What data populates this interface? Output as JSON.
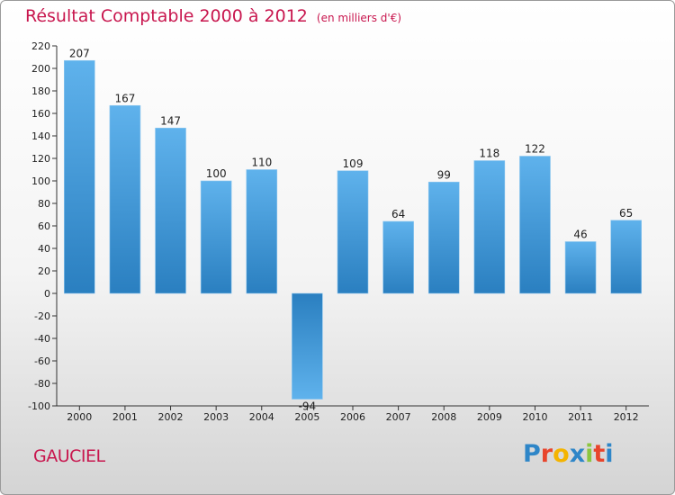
{
  "header": {
    "title": "Résultat Comptable 2000 à 2012",
    "unit": "(en milliers d'€)"
  },
  "footer": {
    "town": "GAUCIEL",
    "logo_letters": [
      "P",
      "r",
      "o",
      "x",
      "i",
      "t",
      "i"
    ],
    "logo_colors": [
      "#2e86c8",
      "#e8452c",
      "#f4b400",
      "#2e86c8",
      "#8cc63f",
      "#e8452c",
      "#2e86c8"
    ]
  },
  "colors": {
    "title": "#c8164e",
    "bar_light": "#5fb2ec",
    "bar_dark": "#2a7fc0",
    "axis": "#333333",
    "grid": "#c8c8c8"
  },
  "chart_data": {
    "type": "bar",
    "title": "Résultat Comptable 2000 à 2012",
    "xlabel": "",
    "ylabel": "",
    "categories": [
      "2000",
      "2001",
      "2002",
      "2003",
      "2004",
      "2005",
      "2006",
      "2007",
      "2008",
      "2009",
      "2010",
      "2011",
      "2012"
    ],
    "values": [
      207,
      167,
      147,
      100,
      110,
      -94,
      109,
      64,
      99,
      118,
      122,
      46,
      65
    ],
    "value_labels": [
      "207",
      "167",
      "147",
      "100",
      "110",
      "-94",
      "109",
      "64",
      "99",
      "118",
      "122",
      "46",
      "65"
    ],
    "ylim": [
      -100,
      220
    ],
    "yticks": [
      220,
      200,
      180,
      160,
      140,
      120,
      100,
      80,
      60,
      40,
      20,
      0,
      -20,
      -40,
      -60,
      -80,
      -100
    ],
    "ytick_labels": [
      "220",
      "200",
      "180",
      "160",
      "140",
      "120",
      "100",
      "80",
      "60",
      "40",
      "20",
      "0",
      "-20",
      "-40",
      "-60",
      "-80",
      "-100"
    ],
    "grid": false,
    "legend": "none"
  }
}
